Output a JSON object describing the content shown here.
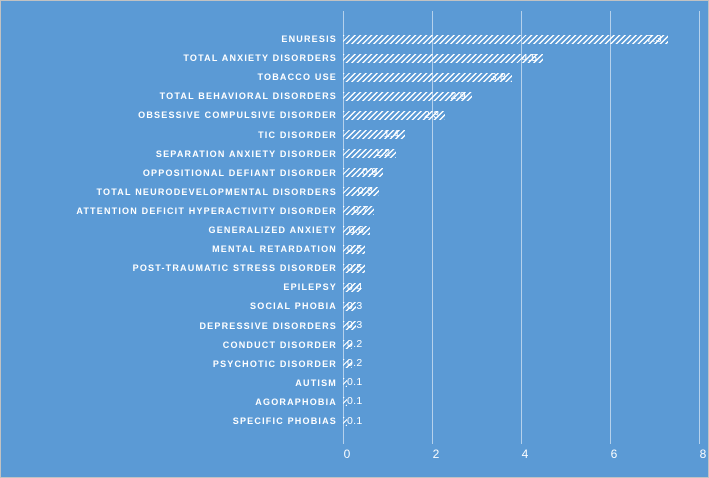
{
  "chart_data": {
    "type": "bar",
    "orientation": "horizontal",
    "title": "",
    "xlabel": "",
    "ylabel": "",
    "xlim": [
      0,
      8
    ],
    "xticks": [
      0,
      2,
      4,
      6,
      8
    ],
    "grid": "vertical",
    "legend": "none",
    "categories": [
      "ENURESIS",
      "TOTAL ANXIETY DISORDERS",
      "TOBACCO USE",
      "TOTAL BEHAVIORAL DISORDERS",
      "OBSESSIVE COMPULSIVE DISORDER",
      "TIC DISORDER",
      "SEPARATION ANXIETY DISORDER",
      "OPPOSITIONAL DEFIANT DISORDER",
      "TOTAL NEURODEVELOPMENTAL DISORDERS",
      "ATTENTION DEFICIT HYPERACTIVITY DISORDER",
      "GENERALIZED ANXIETY",
      "MENTAL RETARDATION",
      "POST-TRAUMATIC STRESS DISORDER",
      "EPILEPSY",
      "SOCIAL PHOBIA",
      "DEPRESSIVE DISORDERS",
      "CONDUCT DISORDER",
      "PSYCHOTIC DISORDER",
      "AUTISM",
      "AGORAPHOBIA",
      "SPECIFIC PHOBIAS"
    ],
    "values": [
      7.3,
      4.5,
      3.8,
      2.9,
      2.3,
      1.4,
      1.2,
      0.9,
      0.8,
      0.7,
      0.6,
      0.5,
      0.5,
      0.4,
      0.3,
      0.3,
      0.2,
      0.2,
      0.1,
      0.1,
      0.1
    ],
    "bar_style": "white diagonal hatch"
  },
  "colors": {
    "background": "#5b9ad5",
    "text": "#ffffff",
    "bar_hatch": "#ffffff",
    "gridline": "rgba(255,255,255,0.55)"
  }
}
